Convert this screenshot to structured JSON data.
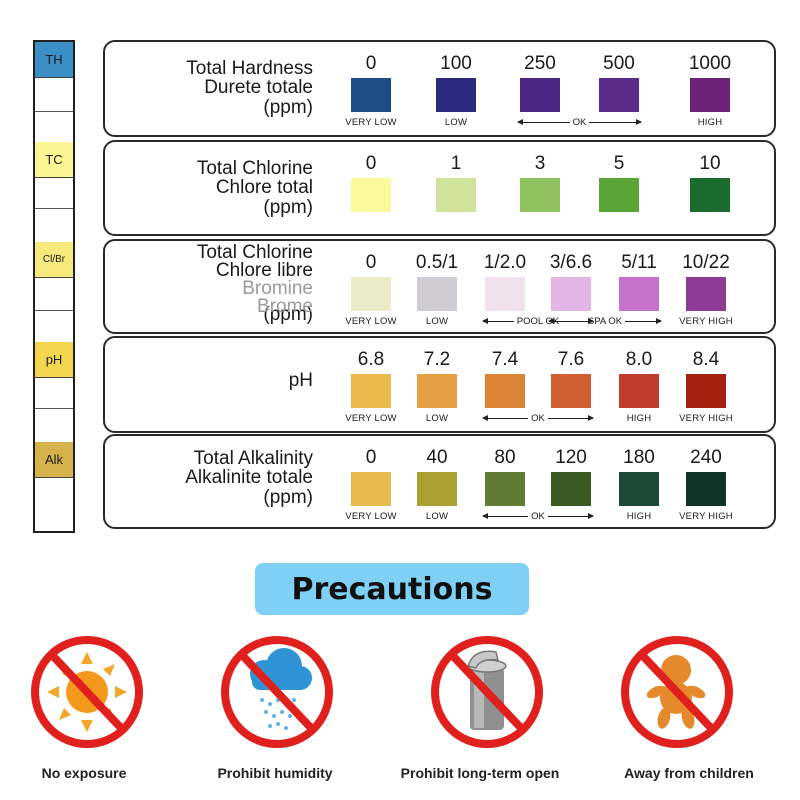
{
  "strip": [
    "TH",
    "TC",
    "Cl/Br",
    "pH",
    "Alk"
  ],
  "panels": [
    {
      "title": [
        "Total Hardness",
        "Durete totale",
        "(ppm)"
      ],
      "grey": [],
      "values": [
        "0",
        "100",
        "250",
        "500",
        "1000"
      ],
      "colors": [
        "#1d4c86",
        "#2a2a7e",
        "#4a2884",
        "#5b2b8a",
        "#6c2378"
      ],
      "labels": [
        "VERY LOW",
        "LOW",
        "",
        "",
        "HIGH"
      ],
      "ranges": [
        "OK"
      ]
    },
    {
      "title": [
        "Total Chlorine",
        "Chlore total",
        "(ppm)"
      ],
      "grey": [],
      "values": [
        "0",
        "1",
        "3",
        "5",
        "10"
      ],
      "colors": [
        "#fafa9c",
        "#cfe39a",
        "#8fc25c",
        "#5aa335",
        "#1a6b2e"
      ],
      "labels": [
        "",
        "",
        "",
        "",
        ""
      ],
      "ranges": []
    },
    {
      "title": [
        "Total Chlorine",
        "Chlore libre",
        "(ppm)"
      ],
      "grey": [
        "Bromine",
        "Brome"
      ],
      "values": [
        "0",
        "0.5/1",
        "1/2.0",
        "3/6.6",
        "5/11",
        "10/22"
      ],
      "colors": [
        "#ecebc8",
        "#cfcdd3",
        "#f1e1ee",
        "#e3b5e4",
        "#c374ca",
        "#8d3b94"
      ],
      "labels": [
        "VERY LOW",
        "LOW",
        "",
        "",
        "",
        "VERY HIGH"
      ],
      "ranges": [
        "POOL OK",
        "SPA OK"
      ]
    },
    {
      "title": [
        "pH"
      ],
      "grey": [],
      "values": [
        "6.8",
        "7.2",
        "7.4",
        "7.6",
        "8.0",
        "8.4"
      ],
      "colors": [
        "#ebb94c",
        "#e5a042",
        "#dc8336",
        "#cf5f30",
        "#c13b2e",
        "#a5200f"
      ],
      "labels": [
        "VERY LOW",
        "LOW",
        "",
        "",
        "HIGH",
        "VERY HIGH"
      ],
      "ranges": [
        "OK"
      ]
    },
    {
      "title": [
        "Total Alkalinity",
        "Alkalinite totale",
        "(ppm)"
      ],
      "grey": [],
      "values": [
        "0",
        "40",
        "80",
        "120",
        "180",
        "240"
      ],
      "colors": [
        "#e8bb4e",
        "#a8a12f",
        "#5f7b34",
        "#3b5a22",
        "#1c4a38",
        "#0f3326"
      ],
      "labels": [
        "VERY LOW",
        "LOW",
        "",
        "",
        "HIGH",
        "VERY HIGH"
      ],
      "ranges": [
        "OK"
      ]
    }
  ],
  "precautions": {
    "title": "Precautions",
    "items": [
      {
        "icon": "sun-icon",
        "caption": "No exposure"
      },
      {
        "icon": "rain-cloud-icon",
        "caption": "Prohibit humidity"
      },
      {
        "icon": "open-container-icon",
        "caption": "Prohibit long-term open"
      },
      {
        "icon": "baby-icon",
        "caption": "Away from children"
      }
    ],
    "ban_color": "#e0201c"
  }
}
